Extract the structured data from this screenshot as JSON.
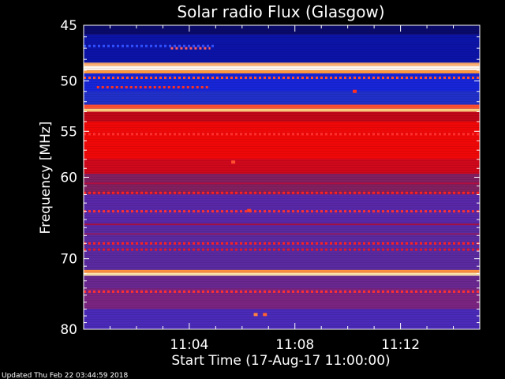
{
  "chart_data": {
    "type": "heatmap",
    "title": "Solar radio Flux (Glasgow)",
    "ylabel": "Frequency [MHz]",
    "xlabel": "Start Time (17-Aug-17 11:00:00)",
    "ylim": [
      45,
      80
    ],
    "y_scale": "log",
    "y_ticks": [
      "45",
      "50",
      "55",
      "60",
      "70",
      "80"
    ],
    "y_tick_values": [
      45,
      50,
      55,
      60,
      70,
      80
    ],
    "x_ticks": [
      "11:04",
      "11:08",
      "11:12"
    ],
    "x_tick_minutes": [
      4,
      8,
      12
    ],
    "xlim_minutes": [
      0,
      15
    ],
    "colormap": [
      "#000080",
      "#1020e0",
      "#3030d0",
      "#6030b0",
      "#a02070",
      "#e01020",
      "#ff0000",
      "#ff8000",
      "#ffe0a0",
      "#ffffff"
    ],
    "bands": [
      {
        "from": 45.0,
        "to": 45.8,
        "color": "#0a0a6a"
      },
      {
        "from": 45.8,
        "to": 48.3,
        "color": "#0c14a8"
      },
      {
        "from": 48.3,
        "to": 48.6,
        "color": "#ffb070"
      },
      {
        "from": 48.6,
        "to": 49.0,
        "color": "#fff6ee"
      },
      {
        "from": 49.0,
        "to": 49.3,
        "color": "#ff9a40"
      },
      {
        "from": 49.3,
        "to": 51.0,
        "color": "#1626d8"
      },
      {
        "from": 51.0,
        "to": 52.3,
        "color": "#2030c8"
      },
      {
        "from": 52.3,
        "to": 52.7,
        "color": "#ff5030"
      },
      {
        "from": 52.7,
        "to": 53.0,
        "color": "#ffd080"
      },
      {
        "from": 53.0,
        "to": 54.0,
        "color": "#c00818"
      },
      {
        "from": 54.0,
        "to": 58.0,
        "color": "#f00808"
      },
      {
        "from": 58.0,
        "to": 59.6,
        "color": "#d0081c"
      },
      {
        "from": 59.6,
        "to": 62.0,
        "color": "#802060"
      },
      {
        "from": 62.0,
        "to": 66.0,
        "color": "#5828a8"
      },
      {
        "from": 66.0,
        "to": 71.5,
        "color": "#5a2aa0"
      },
      {
        "from": 71.5,
        "to": 71.9,
        "color": "#ff9040"
      },
      {
        "from": 71.9,
        "to": 72.3,
        "color": "#ffe8b0"
      },
      {
        "from": 72.3,
        "to": 74.0,
        "color": "#6a2890"
      },
      {
        "from": 74.0,
        "to": 77.0,
        "color": "#7a2480"
      },
      {
        "from": 77.0,
        "to": 80.0,
        "color": "#4a2ab8"
      }
    ],
    "dotted_lines": [
      {
        "freq": 46.8,
        "color": "#3050ff",
        "start": 0,
        "end": 5.0
      },
      {
        "freq": 47.0,
        "color": "#ff6060",
        "start": 3.3,
        "end": 4.8
      },
      {
        "freq": 49.7,
        "color": "#ff5030",
        "start": 0,
        "end": 15
      },
      {
        "freq": 50.6,
        "color": "#ff3020",
        "start": 0.5,
        "end": 4.8
      },
      {
        "freq": 55.3,
        "color": "#ff3030",
        "start": 0,
        "end": 15
      },
      {
        "freq": 61.8,
        "color": "#ff2020",
        "start": 0,
        "end": 15
      },
      {
        "freq": 64.0,
        "color": "#ff3030",
        "start": 0,
        "end": 15
      },
      {
        "freq": 68.0,
        "color": "#ff2020",
        "start": 0,
        "end": 15
      },
      {
        "freq": 68.8,
        "color": "#e01830",
        "start": 0,
        "end": 15
      },
      {
        "freq": 74.5,
        "color": "#ff3030",
        "start": 0,
        "end": 15
      }
    ],
    "solid_lines": [
      {
        "freq": 60.7,
        "color": "#b01040"
      },
      {
        "freq": 65.6,
        "color": "#a01040"
      },
      {
        "freq": 66.8,
        "color": "#8a1c60"
      }
    ],
    "spots": [
      {
        "minute": 5.65,
        "freq": 58.3,
        "color": "#ff5030"
      },
      {
        "minute": 6.25,
        "freq": 63.9,
        "color": "#ff4020"
      },
      {
        "minute": 6.5,
        "freq": 77.8,
        "color": "#ff8040"
      },
      {
        "minute": 6.85,
        "freq": 77.8,
        "color": "#ff6030"
      },
      {
        "minute": 10.25,
        "freq": 51.0,
        "color": "#ff3020"
      }
    ]
  },
  "footer": {
    "updated": "Updated Thu Feb 22 03:44:59 2018"
  }
}
